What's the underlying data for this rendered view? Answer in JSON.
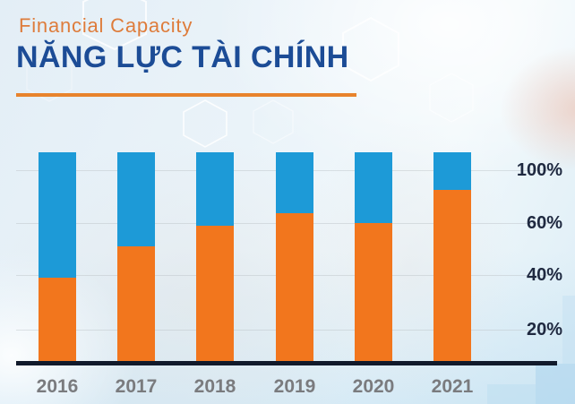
{
  "header": {
    "subtitle": "Financial Capacity",
    "title": "NĂNG LỰC TÀI CHÍNH"
  },
  "colors": {
    "subtitle_orange": "#DE7C3B",
    "title_blue": "#1C4C96",
    "underline_orange": "#E8832C",
    "bar_orange": "#F2761D",
    "bar_blue": "#1D9AD7",
    "axis_line": "#111A2B",
    "y_label_navy": "#1F2940",
    "year_label_gray": "#7A7B7E"
  },
  "chart_data": {
    "type": "bar",
    "stacked": true,
    "title": "NĂNG LỰC TÀI CHÍNH (Financial Capacity)",
    "categories": [
      "2016",
      "2017",
      "2018",
      "2019",
      "2020",
      "2021"
    ],
    "series": [
      {
        "name": "orange-segment",
        "color": "#F2761D",
        "values": [
          40,
          55,
          65,
          71,
          66,
          82
        ]
      },
      {
        "name": "blue-segment",
        "color": "#1D9AD7",
        "values": [
          60,
          45,
          35,
          29,
          34,
          18
        ]
      }
    ],
    "unit": "%",
    "y_axis_labels": [
      "100%",
      "60%",
      "40%",
      "20%"
    ],
    "y_axis_side": "right",
    "ylim": [
      0,
      100
    ],
    "grid": true,
    "legend": "none",
    "xlabel": "",
    "ylabel": ""
  }
}
